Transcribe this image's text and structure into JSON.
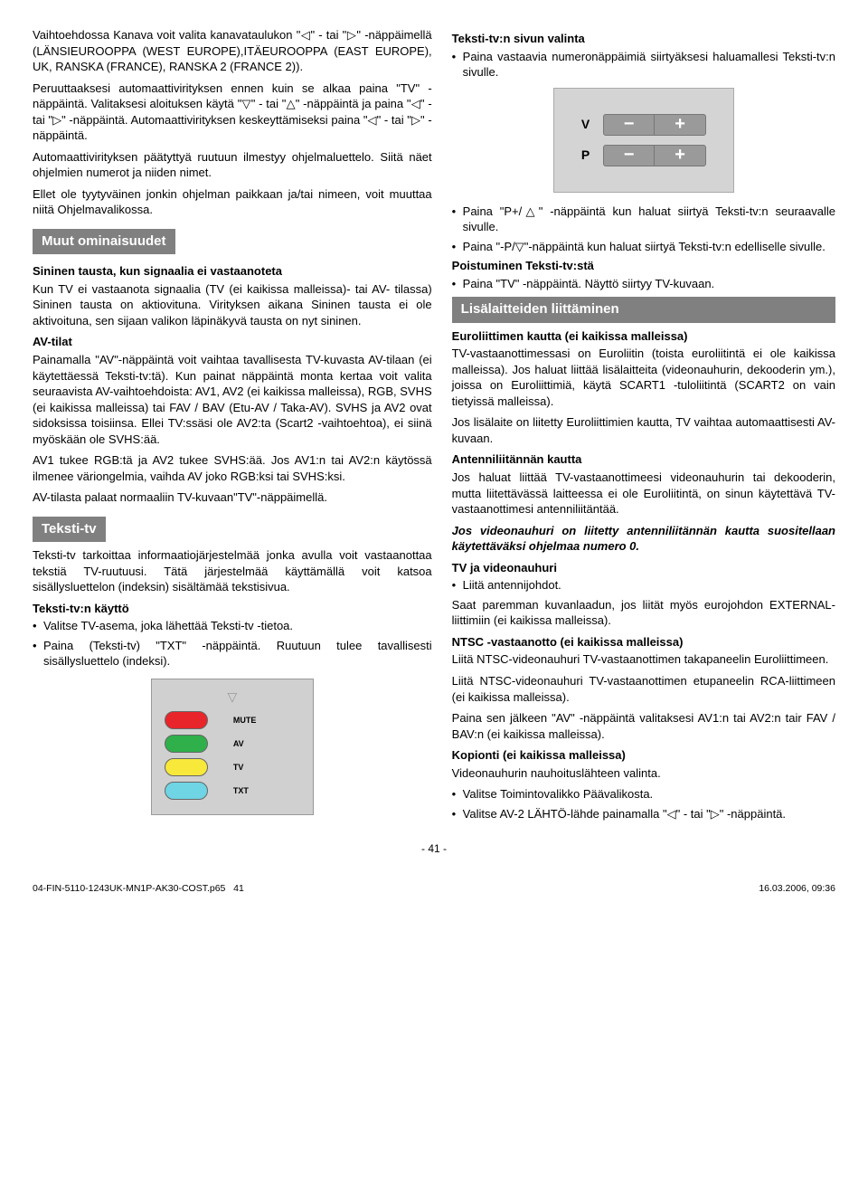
{
  "colors": {
    "bar_bg": "#808080",
    "bar_fg": "#ffffff",
    "remote_bg": "#d0d0d0",
    "vp_bg": "#d4d4d4",
    "vp_bar": "#9a9a9a",
    "btn_red": "#e8252a",
    "btn_green": "#2fb04a",
    "btn_yellow": "#f7e83a",
    "btn_cyan": "#6fd4e4"
  },
  "left": {
    "p1": "Vaihtoehdossa Kanava voit valita kanavataulukon \"◁\" - tai \"▷\" -näppäimellä (LÄNSIEUROOPPA (WEST EUROPE),ITÄEUROOPPA (EAST EUROPE), UK, RANSKA (FRANCE), RANSKA 2 (FRANCE 2)).",
    "p2": "Peruuttaaksesi automaattivirityksen ennen kuin se alkaa paina \"TV\" -näppäintä. Valitaksesi aloituksen käytä \"▽\" - tai \"△\" -näppäintä ja paina \"◁\" - tai \"▷\" -näppäintä. Automaattivirityksen keskeyttämiseksi paina \"◁\" - tai \"▷\" -näppäintä.",
    "p3": "Automaattivirityksen päätyttyä ruutuun ilmestyy ohjelmaluettelo. Siitä näet ohjelmien numerot ja niiden nimet.",
    "p4": "Ellet ole tyytyväinen jonkin ohjelman paikkaan ja/tai nimeen, voit muuttaa niitä Ohjelmavalikossa.",
    "muut_title": "Muut ominaisuudet",
    "sub1": "Sininen tausta, kun signaalia ei vastaanoteta",
    "p5": "Kun TV ei vastaanota signaalia (TV (ei kaikissa malleissa)- tai AV- tilassa) Sininen tausta on aktiovituna. Virityksen aikana Sininen tausta ei ole aktivoituna, sen sijaan valikon läpinäkyvä tausta on nyt sininen.",
    "sub2": "AV-tilat",
    "p6": "Painamalla \"AV\"-näppäintä voit vaihtaa tavallisesta TV-kuvasta AV-tilaan (ei käytettäessä Teksti-tv:tä). Kun painat näppäintä monta kertaa voit valita seuraavista AV-vaihtoehdoista: AV1, AV2 (ei kaikissa malleissa), RGB, SVHS (ei kaikissa malleissa) tai FAV / BAV (Etu-AV / Taka-AV). SVHS ja AV2 ovat sidoksissa toisiinsa. Ellei TV:ssäsi ole AV2:ta (Scart2 -vaihtoehtoa), ei siinä myöskään ole SVHS:ää.",
    "p7": "AV1 tukee RGB:tä ja AV2 tukee SVHS:ää. Jos AV1:n tai AV2:n käytössä ilmenee väriongelmia, vaihda AV joko RGB:ksi tai SVHS:ksi.",
    "p8": "AV-tilasta palaat normaaliin TV-kuvaan\"TV\"-näppäimellä.",
    "tekstitv_title": "Teksti-tv",
    "p9": "Teksti-tv tarkoittaa informaatiojärjestelmää jonka avulla voit vastaanottaa tekstiä TV-ruutuusi. Tätä järjestelmää käyttämällä voit katsoa sisällysluettelon (indeksin) sisältämää tekstisivua.",
    "sub3": "Teksti-tv:n käyttö",
    "li1": "Valitse TV-asema, joka lähettää Teksti-tv -tietoa.",
    "li2": "Paina (Teksti-tv) \"TXT\" -näppäintä. Ruutuun tulee tavallisesti sisällysluettelo (indeksi).",
    "remote": {
      "mute": "MUTE",
      "av": "AV",
      "tv": "TV",
      "txt": "TXT"
    }
  },
  "right": {
    "sub1": "Teksti-tv:n sivun valinta",
    "li1": "Paina vastaavia numeronäppäimiä siirtyäksesi haluamallesi Teksti-tv:n sivulle.",
    "vp": {
      "v": "V",
      "p": "P",
      "minus": "−",
      "plus": "+"
    },
    "li2": "Paina \"P+/△\" -näppäintä kun haluat siirtyä Teksti-tv:n seuraavalle sivulle.",
    "li3": "Paina \"-P/▽\"-näppäintä kun haluat siirtyä Teksti-tv:n edelliselle sivulle.",
    "sub2": "Poistuminen Teksti-tv:stä",
    "li4": "Paina \"TV\" -näppäintä. Näyttö siirtyy TV-kuvaan.",
    "lisa_title": "Lisälaitteiden liittäminen",
    "sub3": "Euroliittimen kautta (ei kaikissa malleissa)",
    "p1": "TV-vastaanottimessasi on Euroliitin (toista euroliitintä ei ole kaikissa malleissa). Jos haluat liittää lisälaitteita (videonauhurin, dekooderin ym.), joissa on Euroliittimiä, käytä SCART1 -tuloliitintä (SCART2 on vain tietyissä malleissa).",
    "p2": "Jos lisälaite on liitetty Euroliittimien kautta, TV vaihtaa automaattisesti AV-kuvaan.",
    "sub4": "Antenniliitännän kautta",
    "p3": "Jos haluat liittää TV-vastaanottimeesi videonauhurin tai dekooderin, mutta liitettävässä laitteessa ei ole Euroliitintä, on sinun käytettävä TV-vastaanottimesi antenniliitäntää.",
    "p4_ital": "Jos videonauhuri on liitetty antenniliitännän kautta suositellaan käytettäväksi ohjelmaa numero 0.",
    "sub5": "TV ja videonauhuri",
    "li5": "Liitä antennijohdot.",
    "p5": "Saat paremman kuvanlaadun, jos liität myös eurojohdon EXTERNAL-liittimiin (ei kaikissa malleissa).",
    "sub6": "NTSC -vastaanotto (ei kaikissa malleissa)",
    "p6": "Liitä NTSC-videonauhuri TV-vastaanottimen takapaneelin Euroliittimeen.",
    "p7": "Liitä NTSC-videonauhuri TV-vastaanottimen etupaneelin RCA-liittimeen (ei kaikissa malleissa).",
    "p8": "Paina sen jälkeen \"AV\" -näppäintä valitaksesi AV1:n tai AV2:n tair FAV / BAV:n (ei kaikissa malleissa).",
    "sub7": "Kopionti (ei kaikissa malleissa)",
    "p9": "Videonauhurin nauhoituslähteen valinta.",
    "li6": "Valitse Toimintovalikko Päävalikosta.",
    "li7": "Valitse AV-2 LÄHTÖ-lähde painamalla \"◁\" - tai \"▷\" -näppäintä."
  },
  "pagenum": "- 41 -",
  "footer": {
    "left": "04-FIN-5110-1243UK-MN1P-AK30-COST.p65",
    "mid": "41",
    "right": "16.03.2006, 09:36"
  }
}
